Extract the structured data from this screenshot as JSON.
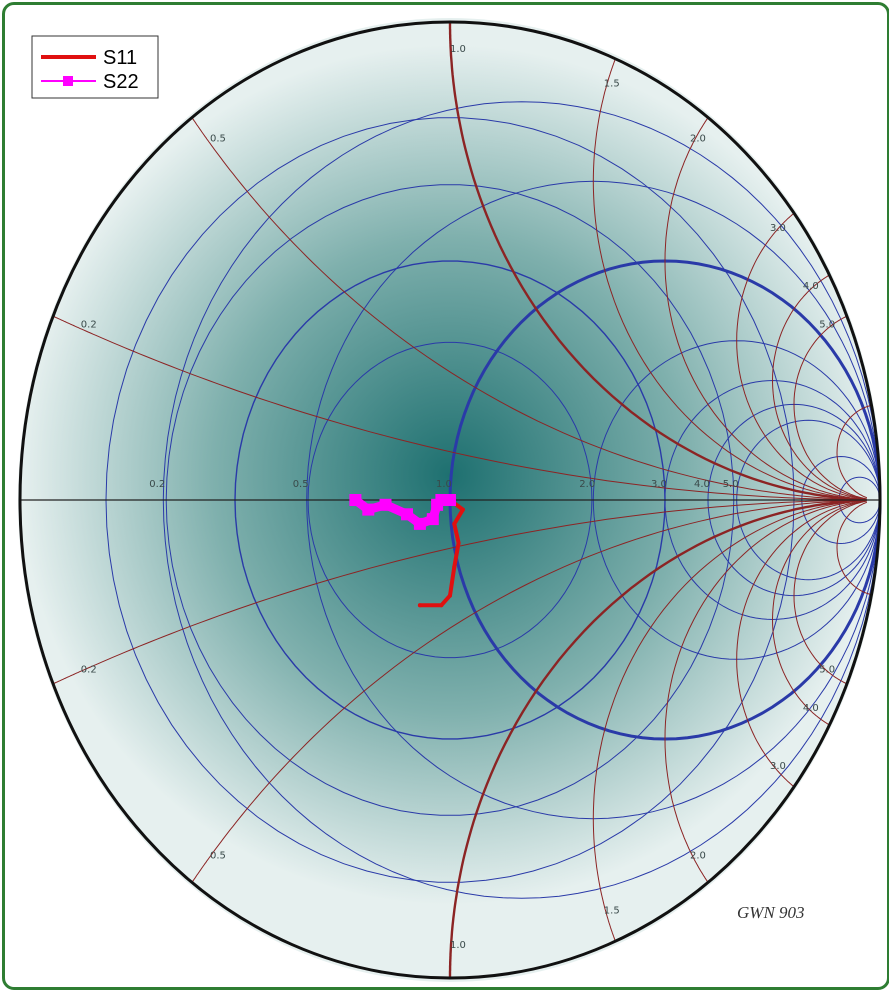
{
  "chart_data": {
    "type": "smith",
    "legend": [
      {
        "name": "S11",
        "color": "#e01010",
        "marker": "none"
      },
      {
        "name": "S22",
        "color": "#ff00ff",
        "marker": "square"
      }
    ],
    "series": [
      {
        "name": "S11",
        "color": "#e01010",
        "points": [
          [
            0.0,
            0.0
          ],
          [
            0.03,
            -0.02
          ],
          [
            0.01,
            -0.05
          ],
          [
            0.02,
            -0.09
          ],
          [
            0.01,
            -0.14
          ],
          [
            0.0,
            -0.2
          ],
          [
            -0.02,
            -0.22
          ],
          [
            -0.07,
            -0.22
          ]
        ]
      },
      {
        "name": "S22",
        "color": "#ff00ff",
        "points": [
          [
            -0.22,
            0.0
          ],
          [
            -0.19,
            -0.02
          ],
          [
            -0.15,
            -0.01
          ],
          [
            -0.1,
            -0.03
          ],
          [
            -0.07,
            -0.05
          ],
          [
            -0.04,
            -0.04
          ],
          [
            -0.03,
            -0.01
          ],
          [
            -0.02,
            0.0
          ],
          [
            0.0,
            0.0
          ]
        ]
      }
    ],
    "resistance_circles": [
      0.2,
      0.5,
      1.0,
      2.0,
      3.0,
      4.0,
      5.0,
      10.0,
      20.0
    ],
    "highlight_resistance": 1.0,
    "reactance_arcs": [
      0.2,
      0.5,
      1.0,
      1.5,
      2.0,
      3.0,
      4.0,
      5.0,
      10.0
    ],
    "highlight_reactance": 1.0,
    "gamma_circles": [
      0.33,
      0.5,
      0.66,
      0.8
    ],
    "highlight_gamma": 0.5,
    "tick_labels": {
      "real_axis": [
        "0.2",
        "0.5",
        "1.0",
        "2.0",
        "3.0",
        "4.0",
        "5.0"
      ],
      "upper": [
        "1.0",
        "1.5",
        "2.0",
        "3.0",
        "4.0",
        "5.0",
        "0.5",
        "0.2"
      ],
      "lower": [
        "0.2",
        "0.5",
        "1.0",
        "1.5",
        "2.0",
        "3.0",
        "4.0",
        "5.0"
      ]
    },
    "watermark": "GWN 903",
    "colors": {
      "frame": "#2e7d32",
      "background_center": "#1e7070",
      "background_edge": "#e6f0ef",
      "resistance": "#2a3aa8",
      "reactance": "#8c2424",
      "axis": "#222222",
      "outer_circle": "#111111"
    }
  }
}
